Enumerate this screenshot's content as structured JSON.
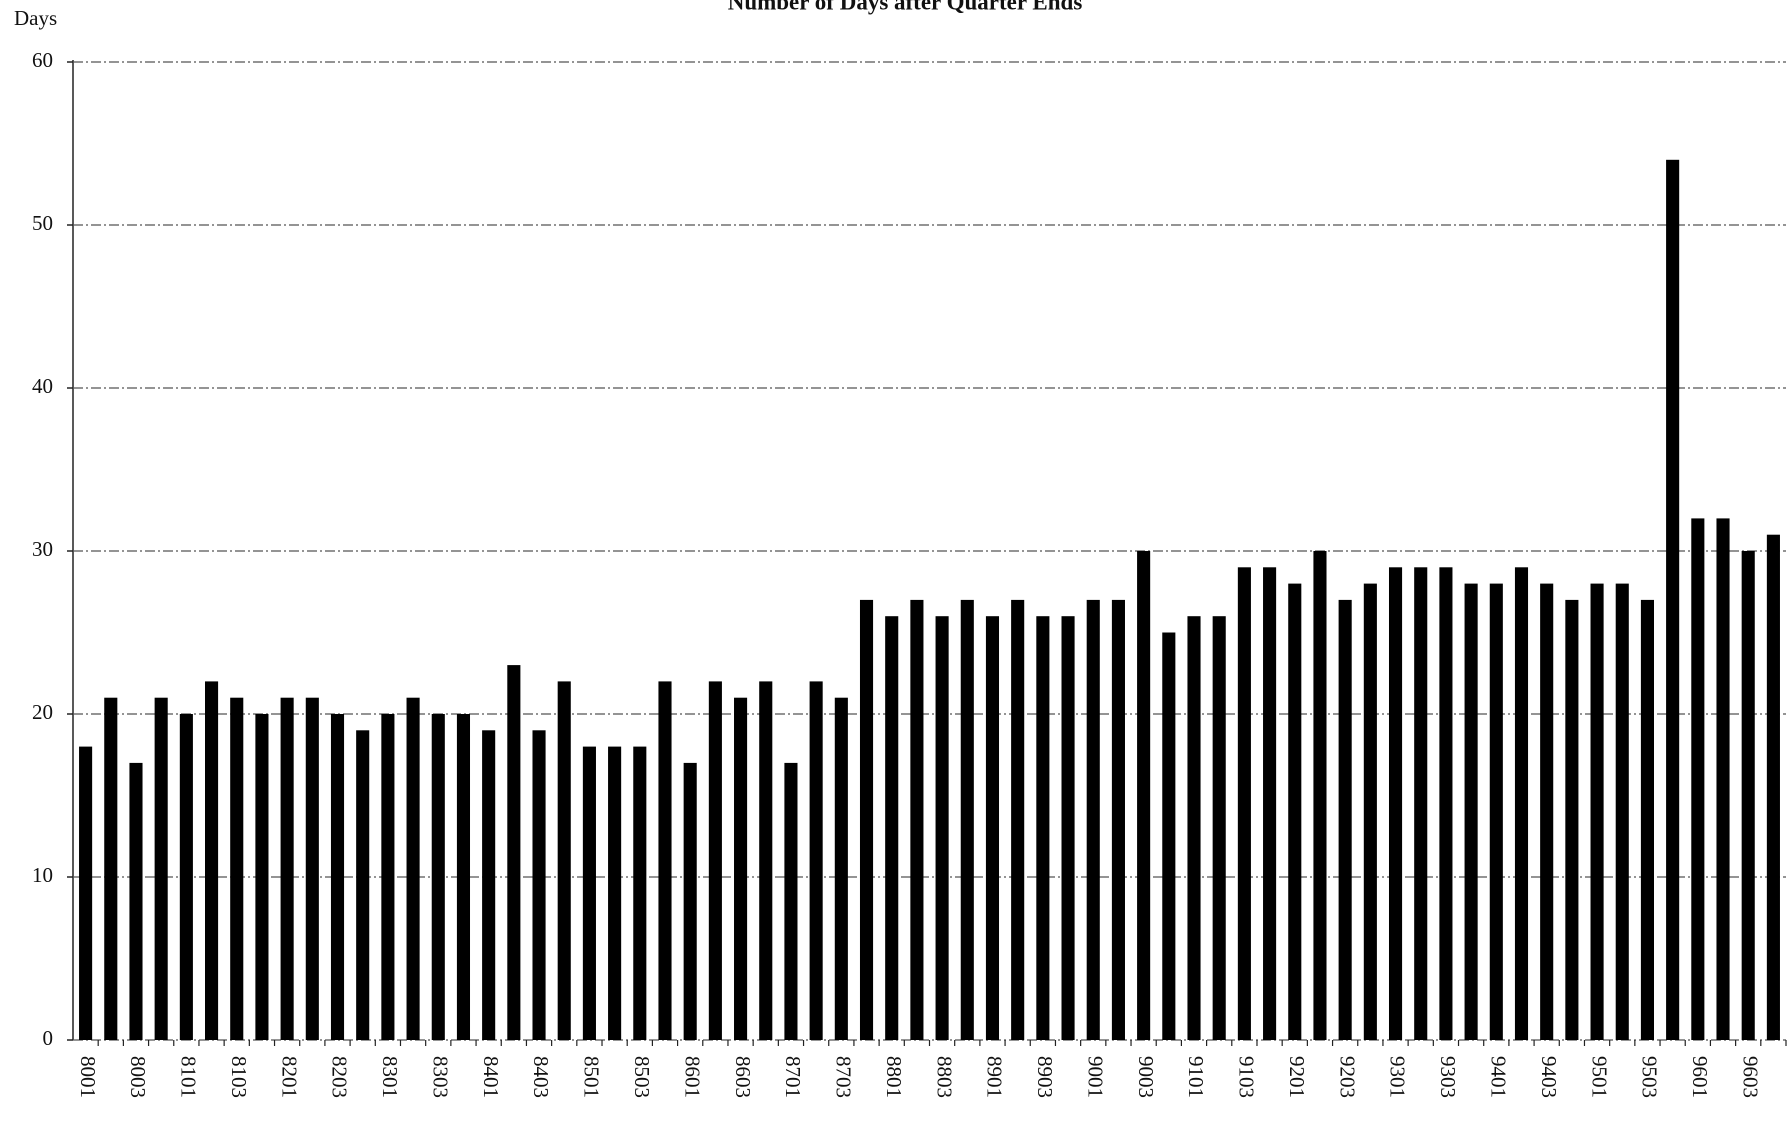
{
  "chart_data": {
    "type": "bar",
    "title": "Number of Days after Quarter Ends",
    "y_label": "Days",
    "categories": [
      "8001",
      null,
      "8003",
      null,
      "8101",
      null,
      "8103",
      null,
      "8201",
      null,
      "8203",
      null,
      "8301",
      null,
      "8303",
      null,
      "8401",
      null,
      "8403",
      null,
      "8501",
      null,
      "8503",
      null,
      "8601",
      null,
      "8603",
      null,
      "8701",
      null,
      "8703",
      null,
      "8801",
      null,
      "8803",
      null,
      "8901",
      null,
      "8903",
      null,
      "9001",
      null,
      "9003",
      null,
      "9101",
      null,
      "9103",
      null,
      "9201",
      null,
      "9203",
      null,
      "9301",
      null,
      "9303",
      null,
      "9401",
      null,
      "9403",
      null,
      "9501",
      null,
      "9503",
      null,
      "9601",
      null,
      "9603",
      null
    ],
    "values": [
      18,
      21,
      17,
      21,
      20,
      22,
      21,
      20,
      21,
      21,
      20,
      19,
      20,
      21,
      20,
      20,
      19,
      23,
      19,
      22,
      18,
      18,
      18,
      22,
      17,
      22,
      21,
      22,
      17,
      22,
      21,
      27,
      26,
      27,
      26,
      27,
      26,
      27,
      26,
      26,
      27,
      27,
      30,
      25,
      26,
      26,
      29,
      29,
      28,
      30,
      27,
      28,
      29,
      29,
      29,
      28,
      28,
      29,
      28,
      27,
      28,
      28,
      27,
      54,
      32,
      32,
      30,
      31
    ],
    "color": "#000000",
    "ylim": [
      0,
      60
    ],
    "yticks": [
      0,
      10,
      20,
      30,
      40,
      50,
      60
    ],
    "grid": true
  }
}
